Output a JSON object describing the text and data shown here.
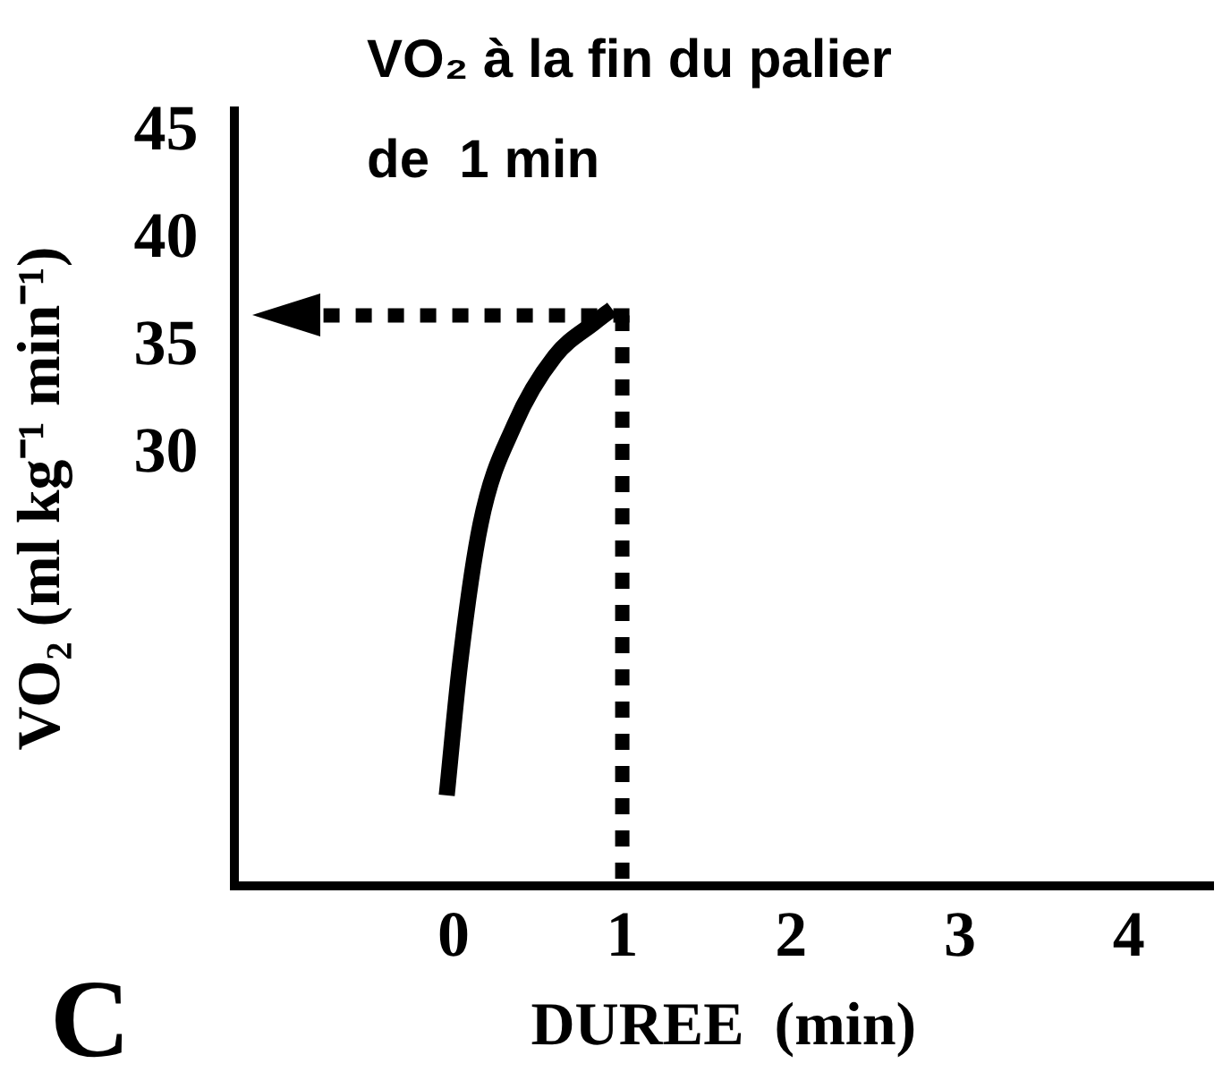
{
  "chart_data": {
    "type": "line",
    "title": "VO₂ à la fin du palier de  1 min",
    "xlabel": "DUREE  (min)",
    "ylabel": "VO₂ (ml kg⁻¹ min⁻¹)",
    "x": [
      -0.04,
      0.04,
      0.16,
      0.36,
      0.6,
      0.84,
      0.94
    ],
    "series": [
      {
        "color": "#000000",
        "values": [
          14.2,
          20.4,
          26.8,
          31.4,
          34.6,
          36.2,
          36.8
        ]
      }
    ],
    "xlim": [
      -1.3,
      4.5
    ],
    "xticks": [
      0,
      1,
      2,
      3,
      4
    ],
    "ylim": [
      10,
      46
    ],
    "yticks": [
      30,
      35,
      40,
      45
    ],
    "ref_lines": [
      {
        "axis": "x",
        "value": 1,
        "color": "#000000",
        "line_style": "dotted"
      },
      {
        "axis": "y",
        "value": 36.5,
        "color": "#000000",
        "line_style": "dotted"
      }
    ],
    "annotations": [
      "C"
    ],
    "grid": false,
    "legend": false,
    "marker": "none",
    "line_style": "solid"
  }
}
